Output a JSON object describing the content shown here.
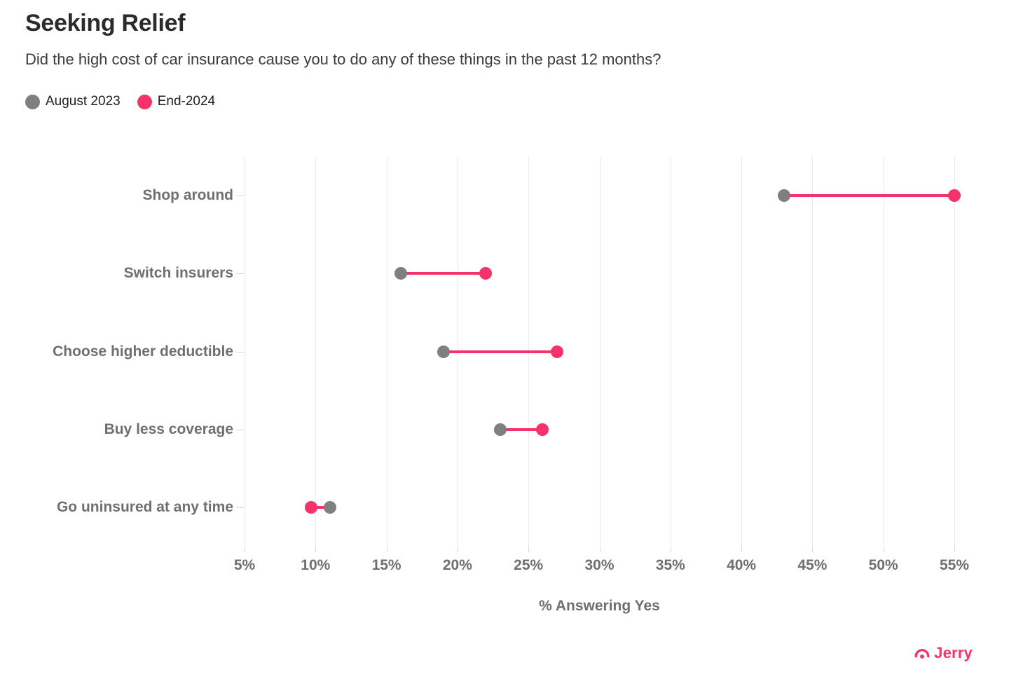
{
  "header": {
    "title": "Seeking Relief",
    "subtitle": "Did the high cost of car insurance cause you to do any of these things in the past 12 months?"
  },
  "legend": {
    "items": [
      {
        "label": "August 2023",
        "color": "#7f7f7f"
      },
      {
        "label": "End-2024",
        "color": "#f4336b"
      }
    ]
  },
  "chart_data": {
    "type": "dumbbell",
    "title": "Seeking Relief",
    "subtitle": "Did the high cost of car insurance cause you to do any of these things in the past 12 months?",
    "categories": [
      "Shop around",
      "Switch insurers",
      "Choose higher deductible",
      "Buy less coverage",
      "Go uninsured at any time"
    ],
    "series": [
      {
        "name": "August 2023",
        "color": "#7f7f7f",
        "values": [
          43,
          16,
          19,
          23,
          11
        ]
      },
      {
        "name": "End-2024",
        "color": "#f4336b",
        "values": [
          55,
          22,
          27,
          26,
          9.7
        ]
      }
    ],
    "xlabel": "% Answering Yes",
    "ylabel": "",
    "xlim": [
      5,
      55
    ],
    "xticks": [
      5,
      10,
      15,
      20,
      25,
      30,
      35,
      40,
      45,
      50,
      55
    ],
    "xtick_suffix": "%",
    "grid": "vertical-only",
    "gridline_color": "#ebebeb",
    "connector_color": "#f4336b",
    "legend_position": "top-left"
  },
  "footer": {
    "brand": "Jerry",
    "brand_color": "#f4336b"
  }
}
